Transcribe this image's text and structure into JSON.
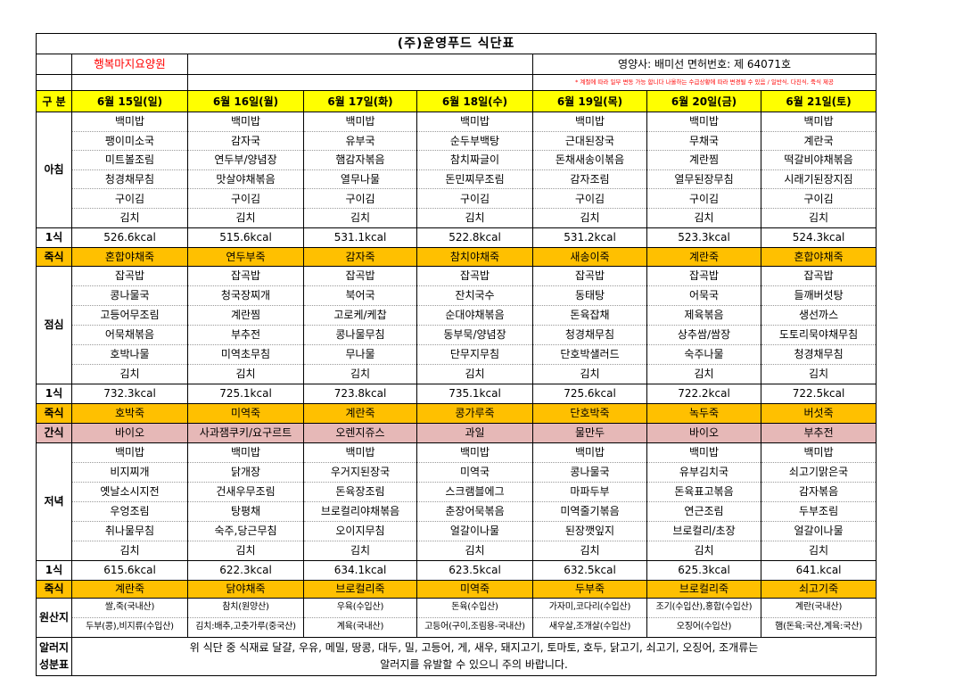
{
  "title": "(주)운영푸드 식단표",
  "facility": "행복마지요양원",
  "nutritionist": "영양사: 배미선 면허번호: 제 64071호",
  "notice": "* 계절에 따라 일부 변동 가능 합니다 나올하는 수급상황에 따라 변경될 수 있음 / 일반식, 다진식, 죽식 제공",
  "header": {
    "label": "구 분",
    "days": [
      "6월 15일(일)",
      "6월 16일(월)",
      "6월 17일(화)",
      "6월 18일(수)",
      "6월 19일(목)",
      "6월 20일(금)",
      "6월 21일(토)"
    ]
  },
  "breakfast": {
    "label": "아침",
    "items": [
      [
        "백미밥",
        "백미밥",
        "백미밥",
        "백미밥",
        "백미밥",
        "백미밥",
        "백미밥"
      ],
      [
        "팽이미소국",
        "감자국",
        "유부국",
        "순두부백탕",
        "근대된장국",
        "무채국",
        "계란국"
      ],
      [
        "미트볼조림",
        "연두부/양념장",
        "햄감자볶음",
        "참치짜글이",
        "돈채새송이볶음",
        "계란찜",
        "떡갈비야채볶음"
      ],
      [
        "청경채무침",
        "맛살야채볶음",
        "열무나물",
        "돈민찌무조림",
        "감자조림",
        "열무된장무침",
        "시래기된장지짐"
      ],
      [
        "구이김",
        "구이김",
        "구이김",
        "구이김",
        "구이김",
        "구이김",
        "구이김"
      ],
      [
        "김치",
        "김치",
        "김치",
        "김치",
        "김치",
        "김치",
        "김치"
      ]
    ]
  },
  "breakfast_kcal": {
    "label": "1식",
    "values": [
      "526.6kcal",
      "515.6kcal",
      "531.1kcal",
      "522.8kcal",
      "531.2kcal",
      "523.3kcal",
      "524.3kcal"
    ]
  },
  "breakfast_porridge": {
    "label": "죽식",
    "values": [
      "혼합야채죽",
      "연두부죽",
      "감자죽",
      "참치야채죽",
      "새송이죽",
      "계란죽",
      "혼합야채죽"
    ]
  },
  "lunch": {
    "label": "점심",
    "items": [
      [
        "잡곡밥",
        "잡곡밥",
        "잡곡밥",
        "잡곡밥",
        "잡곡밥",
        "잡곡밥",
        "잡곡밥"
      ],
      [
        "콩나물국",
        "청국장찌개",
        "북어국",
        "잔치국수",
        "동태탕",
        "어묵국",
        "들깨버섯탕"
      ],
      [
        "고등어무조림",
        "계란찜",
        "고로케/케찹",
        "순대야채볶음",
        "돈육잡채",
        "제육볶음",
        "생선까스"
      ],
      [
        "어묵채볶음",
        "부추전",
        "콩나물무침",
        "동부묵/양념장",
        "청경채무침",
        "상추쌈/쌈장",
        "도토리묵야채무침"
      ],
      [
        "호박나물",
        "미역초무침",
        "무나물",
        "단무지무침",
        "단호박샐러드",
        "숙주나물",
        "청경채무침"
      ],
      [
        "김치",
        "김치",
        "김치",
        "김치",
        "김치",
        "김치",
        "김치"
      ]
    ]
  },
  "lunch_kcal": {
    "label": "1식",
    "values": [
      "732.3kcal",
      "725.1kcal",
      "723.8kcal",
      "735.1kcal",
      "725.6kcal",
      "722.2kcal",
      "722.5kcal"
    ]
  },
  "lunch_porridge": {
    "label": "죽식",
    "values": [
      "호박죽",
      "미역죽",
      "계란죽",
      "콩가루죽",
      "단호박죽",
      "녹두죽",
      "버섯죽"
    ]
  },
  "snack": {
    "label": "간식",
    "values": [
      "바이오",
      "사과잼쿠키/요구르트",
      "오렌지쥬스",
      "과일",
      "물만두",
      "바이오",
      "부추전"
    ]
  },
  "dinner": {
    "label": "저녁",
    "items": [
      [
        "백미밥",
        "백미밥",
        "백미밥",
        "백미밥",
        "백미밥",
        "백미밥",
        "백미밥"
      ],
      [
        "비지찌개",
        "닭개장",
        "우거지된장국",
        "미역국",
        "콩나물국",
        "유부김치국",
        "쇠고기맑은국"
      ],
      [
        "옛날소시지전",
        "건새우무조림",
        "돈육장조림",
        "스크램블에그",
        "마파두부",
        "돈육표고볶음",
        "감자볶음"
      ],
      [
        "우엉조림",
        "탕평채",
        "브로컬리야채볶음",
        "춘장어묵볶음",
        "미역줄기볶음",
        "연근조림",
        "두부조림"
      ],
      [
        "취나물무침",
        "숙주,당근무침",
        "오이지무침",
        "얼갈이나물",
        "된장깻잎지",
        "브로컬리/초장",
        "얼갈이나물"
      ],
      [
        "김치",
        "김치",
        "김치",
        "김치",
        "김치",
        "김치",
        "김치"
      ]
    ]
  },
  "dinner_kcal": {
    "label": "1식",
    "values": [
      "615.6kcal",
      "622.3kcal",
      "634.1kcal",
      "623.5kcal",
      "632.5kcal",
      "625.3kcal",
      "641.kcal"
    ]
  },
  "dinner_porridge": {
    "label": "죽식",
    "values": [
      "계란죽",
      "닭야채죽",
      "브로컬리죽",
      "미역죽",
      "두부죽",
      "브로컬리죽",
      "쇠고기죽"
    ]
  },
  "origin": {
    "label": "원산지",
    "rows": [
      [
        "쌀,죽(국내산)",
        "참치(원양산)",
        "우육(수입산)",
        "돈육(수입산)",
        "가자미,코다리(수입산)",
        "조기(수입산),홍합(수입산)",
        "계란(국내산)"
      ],
      [
        "두부(콩),비지류(수입산)",
        "김치:배추,고춧가루(중국산)",
        "계육(국내산)",
        "고등어(구이,조림용-국내산)",
        "새우살,조개살(수입산)",
        "오징어(수입산)",
        "햄(돈육:국산,계육:국산)"
      ]
    ]
  },
  "allergy": {
    "label_lines": [
      "알러지",
      "성분표"
    ],
    "lines": [
      "위 식단 중 식재료 달걀, 우유, 메밀, 땅콩, 대두, 밀, 고등어, 게, 새우, 돼지고기, 토마토, 호두, 닭고기, 쇠고기, 오징어, 조개류는",
      "알러지를 유발할 수 있으니 주의 바랍니다."
    ]
  },
  "colors": {
    "header_bg": "#FFFF00",
    "porridge_bg": "#FFC000",
    "snack_bg": "#E6B8B7",
    "facility_text": "#FF0000",
    "notice_text": "#FF0000"
  }
}
